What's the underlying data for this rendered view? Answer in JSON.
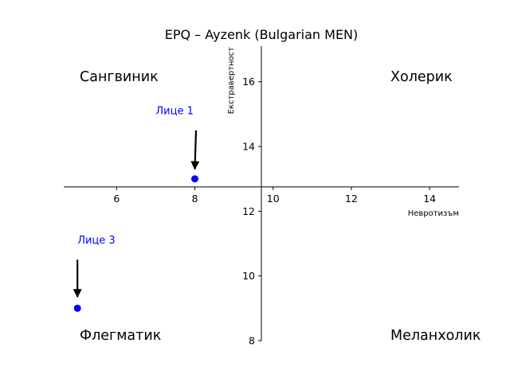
{
  "chart_data": {
    "type": "scatter",
    "title": "EPQ – Ayzenk (Bulgarian MEN)",
    "xlabel": "Невротизъм",
    "ylabel": "Екстравертност",
    "xlim": [
      4.65,
      14.75
    ],
    "ylim": [
      8.0,
      17.1
    ],
    "x_ticks": [
      6,
      8,
      10,
      12,
      14
    ],
    "y_ticks": [
      8,
      10,
      12,
      14,
      16
    ],
    "x_axis_at_y": 12.75,
    "y_axis_at_x": 9.7,
    "grid": false,
    "quadrant_labels": {
      "top_left": "Сангвиник",
      "top_right": "Холерик",
      "bottom_left": "Флегматик",
      "bottom_right": "Меланхолик"
    },
    "points": [
      {
        "label": "Лице 1",
        "x": 8,
        "y": 13,
        "color": "#0000ff",
        "label_pos": [
          7.0,
          15.0
        ],
        "arrow_from": [
          8.03,
          14.5
        ],
        "arrow_to": [
          8.0,
          13.3
        ]
      },
      {
        "label": "Лице 3",
        "x": 5,
        "y": 9,
        "color": "#0000ff",
        "label_pos": [
          5.0,
          11.0
        ],
        "arrow_from": [
          5.0,
          10.5
        ],
        "arrow_to": [
          5.0,
          9.35
        ]
      }
    ]
  }
}
